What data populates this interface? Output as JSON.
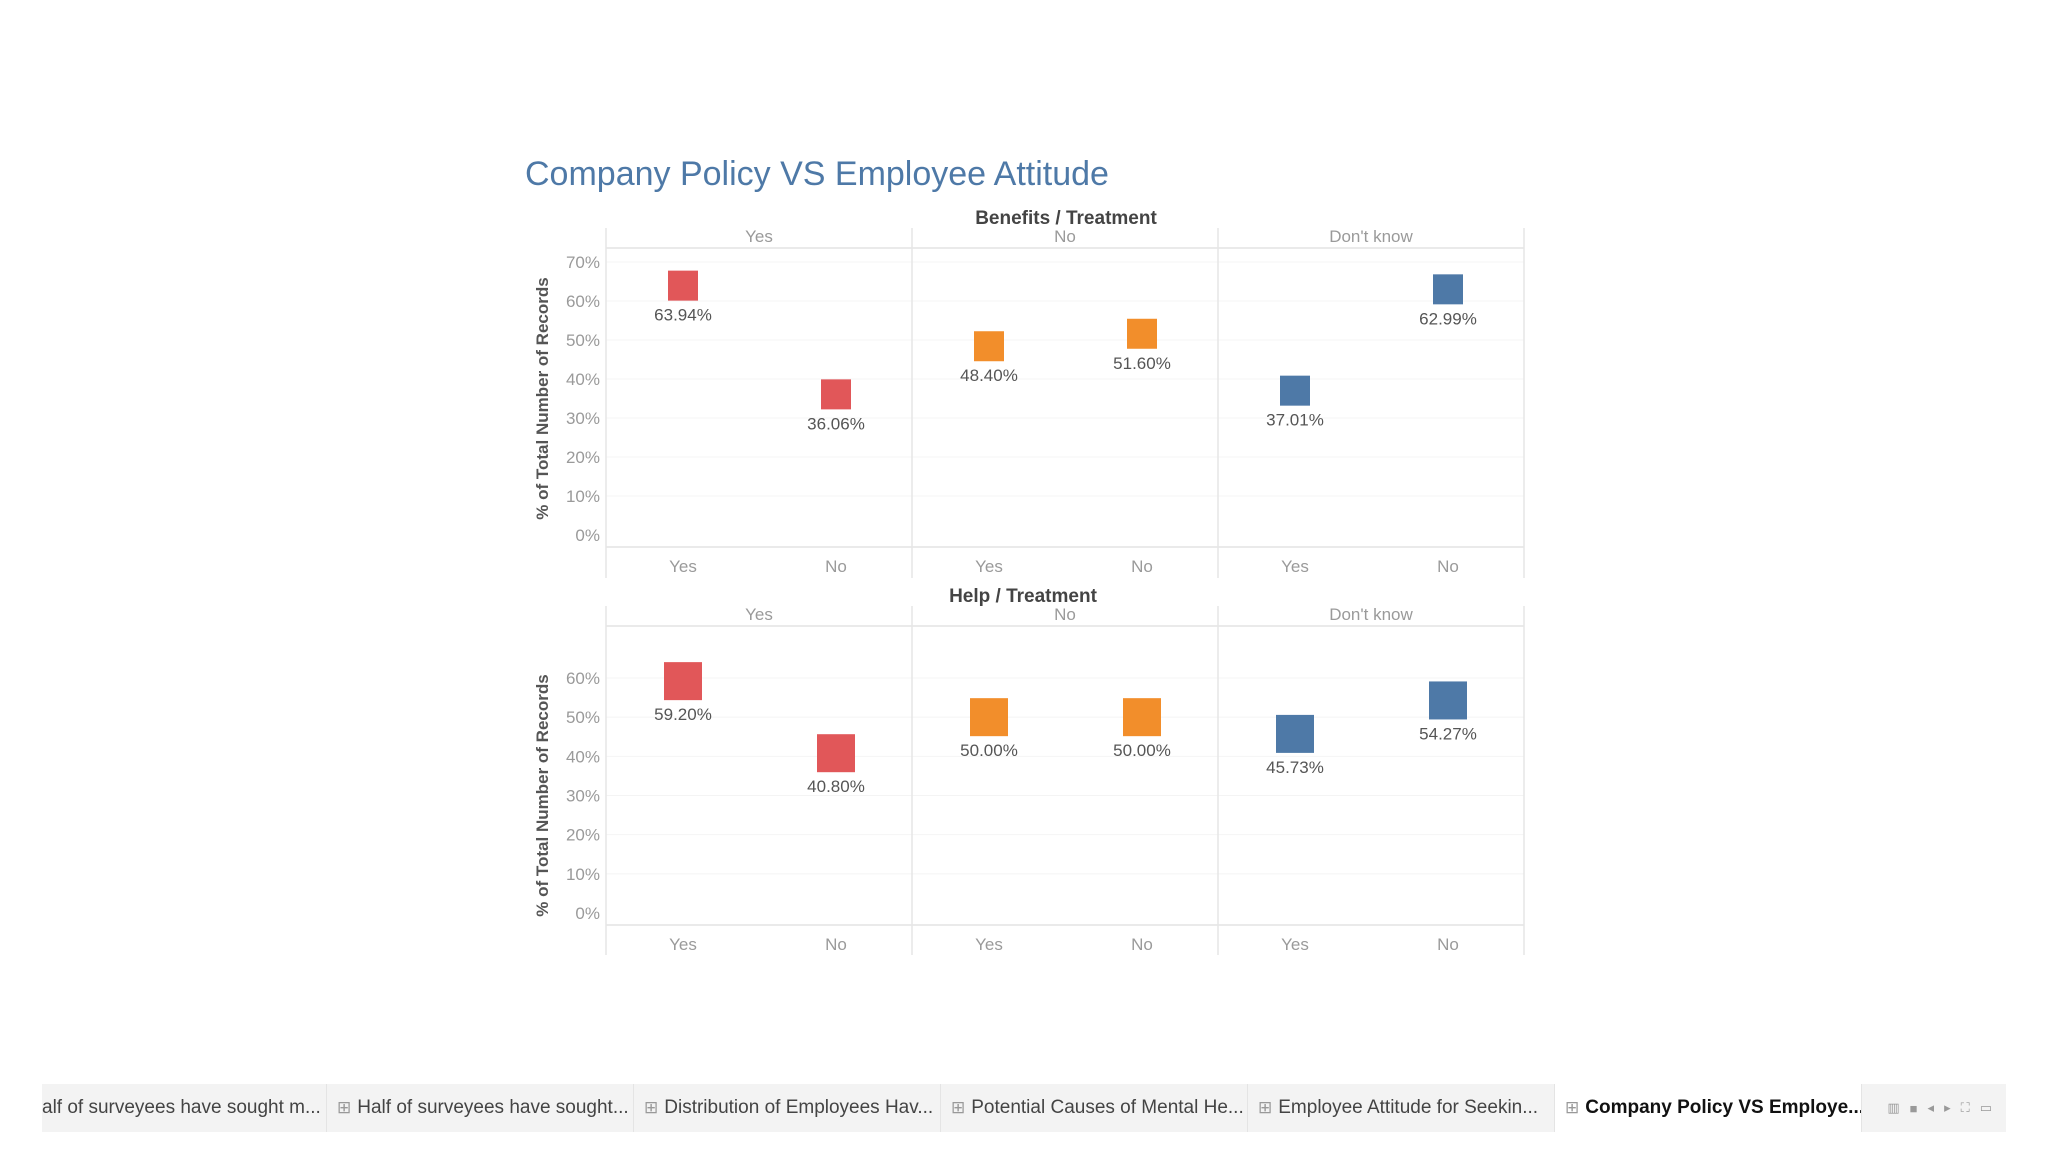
{
  "dashboard_title": "Company Policy VS Employee Attitude",
  "colors": {
    "yes": "#e15759",
    "no": "#f28e2b",
    "dont_know": "#4e79a7"
  },
  "chart_data": [
    {
      "type": "scatter",
      "title": "Benefits / Treatment",
      "ylabel": "% of Total Number of Records",
      "ylim": [
        0,
        70
      ],
      "yticks": [
        "0%",
        "10%",
        "20%",
        "30%",
        "40%",
        "50%",
        "60%",
        "70%"
      ],
      "groups": [
        "Yes",
        "No",
        "Don't know"
      ],
      "categories": [
        "Yes",
        "No"
      ],
      "series": [
        {
          "group": "Yes",
          "values": [
            63.94,
            36.06
          ],
          "labels": [
            "63.94%",
            "36.06%"
          ]
        },
        {
          "group": "No",
          "values": [
            48.4,
            51.6
          ],
          "labels": [
            "48.40%",
            "51.60%"
          ]
        },
        {
          "group": "Don't know",
          "values": [
            37.01,
            62.99
          ],
          "labels": [
            "37.01%",
            "62.99%"
          ]
        }
      ]
    },
    {
      "type": "scatter",
      "title": "Help / Treatment",
      "ylabel": "% of Total Number of Records",
      "ylim": [
        0,
        60
      ],
      "yticks": [
        "0%",
        "10%",
        "20%",
        "30%",
        "40%",
        "50%",
        "60%"
      ],
      "groups": [
        "Yes",
        "No",
        "Don't know"
      ],
      "categories": [
        "Yes",
        "No"
      ],
      "series": [
        {
          "group": "Yes",
          "values": [
            59.2,
            40.8
          ],
          "labels": [
            "59.20%",
            "40.80%"
          ]
        },
        {
          "group": "No",
          "values": [
            50.0,
            50.0
          ],
          "labels": [
            "50.00%",
            "50.00%"
          ]
        },
        {
          "group": "Don't know",
          "values": [
            45.73,
            54.27
          ],
          "labels": [
            "45.73%",
            "54.27%"
          ]
        }
      ]
    }
  ],
  "tabs": [
    {
      "label": "alf of surveyees have sought m...",
      "icon": ""
    },
    {
      "label": "Half of surveyees have sought...",
      "icon": "⊞"
    },
    {
      "label": "Distribution of Employees Hav...",
      "icon": "⊞"
    },
    {
      "label": "Potential Causes of Mental He...",
      "icon": "⊞"
    },
    {
      "label": "Employee Attitude for Seekin...",
      "icon": "⊞"
    },
    {
      "label": "Company Policy VS Employe...",
      "icon": "⊞"
    }
  ]
}
